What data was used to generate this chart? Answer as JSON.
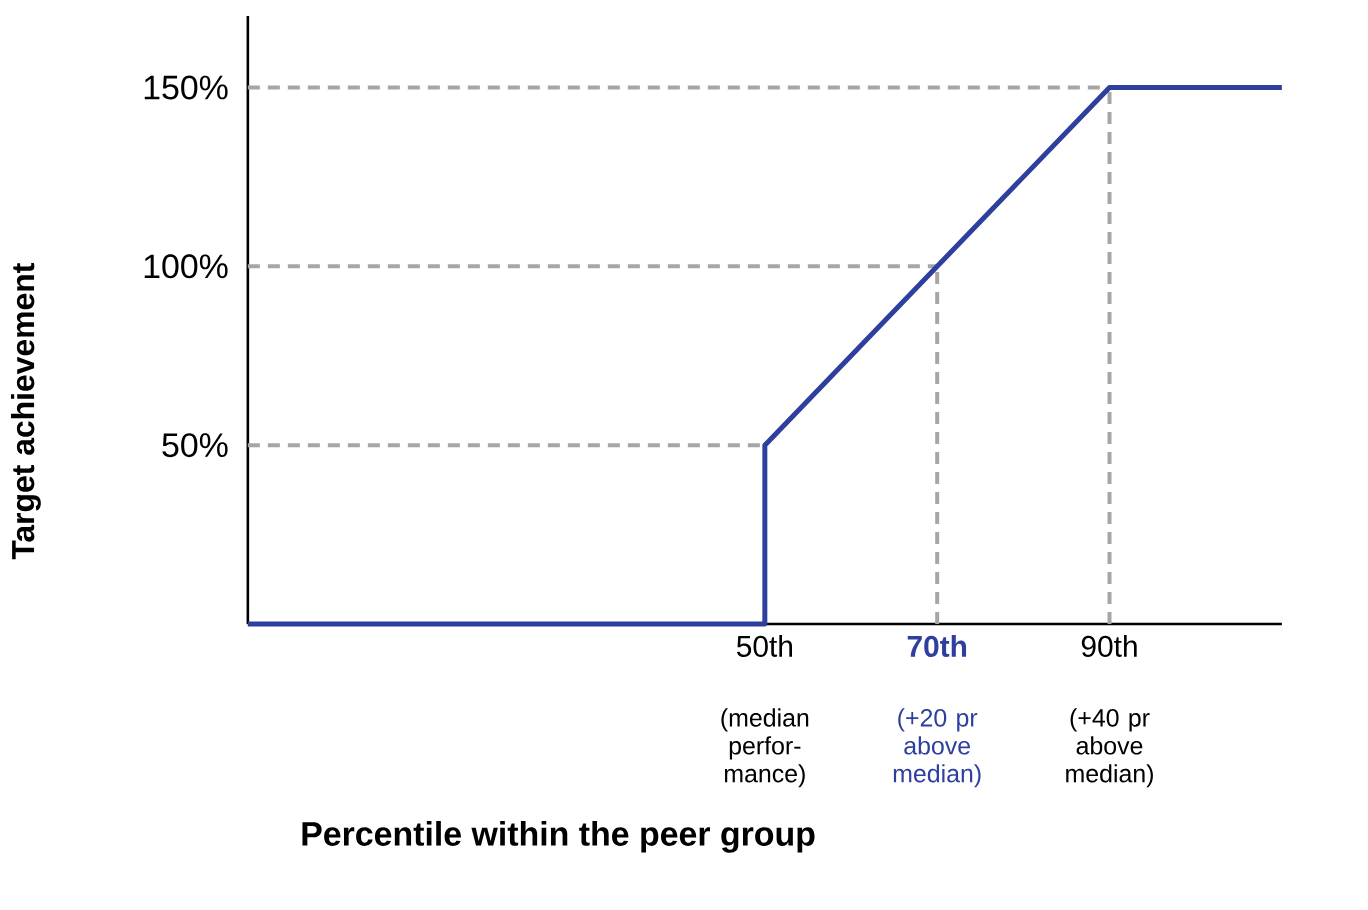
{
  "chart_data": {
    "type": "line",
    "xlabel": "Percentile within the peer group",
    "ylabel": "Target achievement",
    "x": [
      -10,
      50,
      50,
      70,
      90,
      110
    ],
    "series": [
      {
        "color": "#2e3f9e",
        "values": [
          0,
          0,
          50,
          100,
          150,
          150
        ]
      }
    ],
    "xlim": [
      -10,
      110
    ],
    "ylim": [
      0,
      170
    ],
    "xticks": [
      {
        "value": 50,
        "label": "50th"
      },
      {
        "value": 70,
        "label": "70th"
      },
      {
        "value": 90,
        "label": "90th"
      }
    ],
    "yticks": [
      {
        "value": 50,
        "label": "50%"
      },
      {
        "value": 100,
        "label": "100%"
      },
      {
        "value": 150,
        "label": "150%"
      }
    ],
    "annotations": [
      "(median perfor- mance)",
      "(+20 pr above median)",
      "(+40 pr above median)"
    ],
    "ref_lines": [
      {
        "axis": "y",
        "value": 50,
        "color": "#a6a6a6",
        "line_style": "dashed"
      },
      {
        "axis": "y",
        "value": 100,
        "color": "#a6a6a6",
        "line_style": "dashed"
      },
      {
        "axis": "y",
        "value": 150,
        "color": "#a6a6a6",
        "line_style": "dashed"
      },
      {
        "axis": "x",
        "value": 70,
        "color": "#a6a6a6",
        "line_style": "dashed"
      },
      {
        "axis": "x",
        "value": 90,
        "color": "#a6a6a6",
        "line_style": "dashed"
      }
    ],
    "grid": false,
    "marker": "none",
    "line_style": "solid"
  }
}
